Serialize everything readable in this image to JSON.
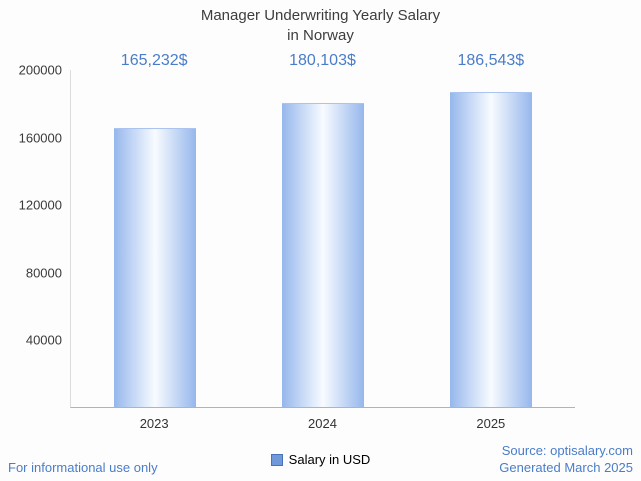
{
  "title": {
    "line1": "Manager Underwriting Yearly Salary",
    "line2": "in Norway"
  },
  "chart_data": {
    "type": "bar",
    "title": "Manager Underwriting Yearly Salary in Norway",
    "categories": [
      "2023",
      "2024",
      "2025"
    ],
    "values": [
      165232,
      180103,
      186543
    ],
    "value_labels": [
      "165,232$",
      "180,103$",
      "186,543$"
    ],
    "series_name": "Salary in USD",
    "xlabel": "",
    "ylabel": "",
    "ylim": [
      0,
      200000
    ],
    "yticks": [
      40000,
      80000,
      120000,
      160000,
      200000
    ],
    "grid": false,
    "legend_position": "bottom"
  },
  "legend": {
    "label": "Salary in USD"
  },
  "footer": {
    "left": "For informational use only",
    "source": "Source: optisalary.com",
    "generated": "Generated March 2025"
  },
  "colors": {
    "bar_edge": "#96b7ec",
    "bar_center": "#f8fbff",
    "value_label_blue": "#4a7dc9",
    "footer_blue": "#4a7dc9",
    "title_gray": "#3d3d3d",
    "axis_gray": "#b3b3b3",
    "legend_square_fill": "#6f99d8",
    "legend_square_border": "#4a72b8"
  }
}
